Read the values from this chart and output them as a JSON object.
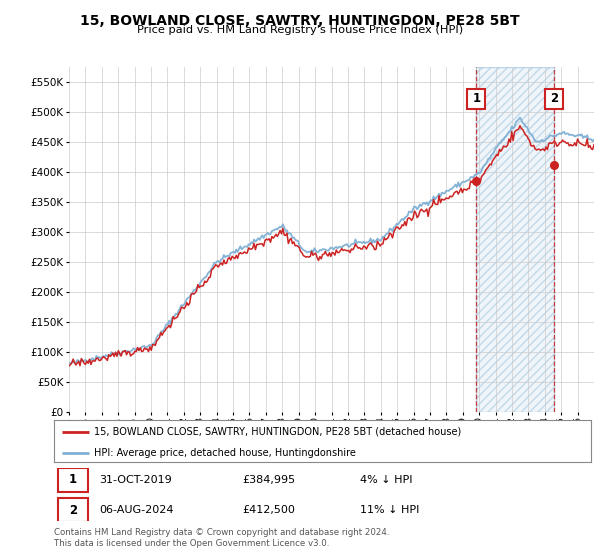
{
  "title_line1": "15, BOWLAND CLOSE, SAWTRY, HUNTINGDON, PE28 5BT",
  "title_line2": "Price paid vs. HM Land Registry's House Price Index (HPI)",
  "ylim": [
    0,
    575000
  ],
  "yticks": [
    0,
    50000,
    100000,
    150000,
    200000,
    250000,
    300000,
    350000,
    400000,
    450000,
    500000,
    550000
  ],
  "ytick_labels": [
    "£0",
    "£50K",
    "£100K",
    "£150K",
    "£200K",
    "£250K",
    "£300K",
    "£350K",
    "£400K",
    "£450K",
    "£500K",
    "£550K"
  ],
  "hpi_color": "#7fafd4",
  "price_color": "#cc2222",
  "sale1_year": 2019.833,
  "sale2_year": 2024.583,
  "marker1_price": 384995,
  "marker2_price": 412500,
  "marker1_date_str": "31-OCT-2019",
  "marker2_date_str": "06-AUG-2024",
  "marker1_pct": "4% ↓ HPI",
  "marker2_pct": "11% ↓ HPI",
  "legend_price_label": "15, BOWLAND CLOSE, SAWTRY, HUNTINGDON, PE28 5BT (detached house)",
  "legend_hpi_label": "HPI: Average price, detached house, Huntingdonshire",
  "footer": "Contains HM Land Registry data © Crown copyright and database right 2024.\nThis data is licensed under the Open Government Licence v3.0.",
  "background_color": "#ffffff",
  "grid_color": "#cccccc",
  "x_start_year": 1995,
  "x_end_year": 2027
}
